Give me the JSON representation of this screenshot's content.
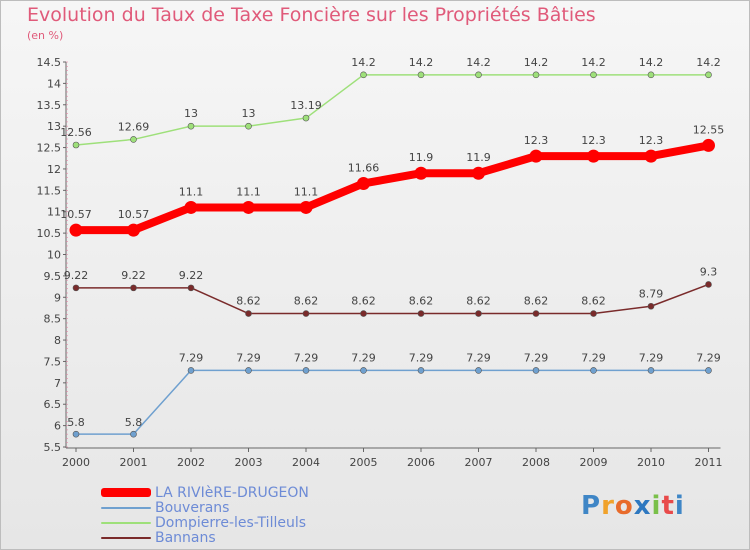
{
  "title": "Evolution du Taux de Taxe Foncière sur les Propriétés Bâties",
  "unit_label": "(en %)",
  "logo": {
    "text": "Proxiti",
    "letters": [
      "P",
      "r",
      "o",
      "x",
      "i",
      "t",
      "i"
    ],
    "colors": [
      "#3f86c6",
      "#f0a22b",
      "#e86b2b",
      "#2e78c0",
      "#7ac04a",
      "#e84a4a",
      "#3f86c6"
    ]
  },
  "chart_data": {
    "type": "line",
    "title": "Evolution du Taux de Taxe Foncière sur les Propriétés Bâties",
    "ylabel": "(en %)",
    "xlabel": "",
    "x": [
      "2000",
      "2001",
      "2002",
      "2003",
      "2004",
      "2005",
      "2006",
      "2007",
      "2008",
      "2009",
      "2010",
      "2011"
    ],
    "ylim": [
      5.5,
      14.5
    ],
    "yticks": [
      "5.5",
      "6",
      "6.5",
      "7",
      "7.5",
      "8",
      "8.5",
      "9",
      "9.5",
      "10",
      "10.5",
      "11",
      "11.5",
      "12",
      "12.5",
      "13",
      "13.5",
      "14",
      "14.5"
    ],
    "grid": false,
    "legend_position": "bottom-left",
    "series": [
      {
        "name": "LA RIVIèRE-DRUGEON",
        "color": "#ff0000",
        "values": [
          10.57,
          10.57,
          11.1,
          11.1,
          11.1,
          11.66,
          11.9,
          11.9,
          12.3,
          12.3,
          12.3,
          12.55
        ],
        "labels": [
          "10.57",
          "10.57",
          "11.1",
          "11.1",
          "11.1",
          "11.66",
          "11.9",
          "11.9",
          "12.3",
          "12.3",
          "12.3",
          "12.55"
        ]
      },
      {
        "name": "Bouverans",
        "color": "#6fa0cf",
        "values": [
          5.8,
          5.8,
          7.29,
          7.29,
          7.29,
          7.29,
          7.29,
          7.29,
          7.29,
          7.29,
          7.29,
          7.29
        ],
        "labels": [
          "5.8",
          "5.8",
          "7.29",
          "7.29",
          "7.29",
          "7.29",
          "7.29",
          "7.29",
          "7.29",
          "7.29",
          "7.29",
          "7.29"
        ]
      },
      {
        "name": "Dompierre-les-Tilleuls",
        "color": "#9ee07a",
        "values": [
          12.56,
          12.69,
          13,
          13,
          13.19,
          14.2,
          14.2,
          14.2,
          14.2,
          14.2,
          14.2,
          14.2
        ],
        "labels": [
          "12.56",
          "12.69",
          "13",
          "13",
          "13.19",
          "14.2",
          "14.2",
          "14.2",
          "14.2",
          "14.2",
          "14.2",
          "14.2"
        ]
      },
      {
        "name": "Bannans",
        "color": "#7a2b2b",
        "values": [
          9.22,
          9.22,
          9.22,
          8.62,
          8.62,
          8.62,
          8.62,
          8.62,
          8.62,
          8.62,
          8.79,
          9.3
        ],
        "labels": [
          "9.22",
          "9.22",
          "9.22",
          "8.62",
          "8.62",
          "8.62",
          "8.62",
          "8.62",
          "8.62",
          "8.62",
          "8.79",
          "9.3"
        ]
      }
    ]
  }
}
